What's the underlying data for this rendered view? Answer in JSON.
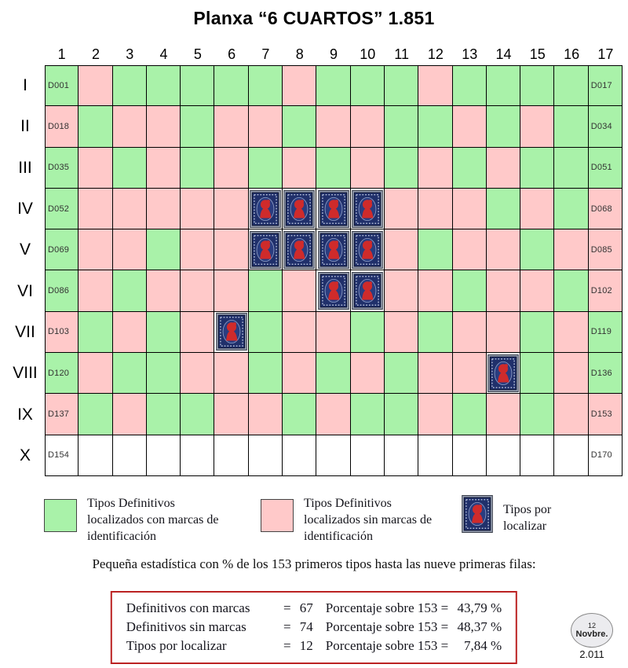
{
  "title": "Planxa “6 CUARTOS” 1.851",
  "colors": {
    "green": "#a9f2a9",
    "pink": "#ffc9c9",
    "stamp_blue": "#20306b",
    "stamp_red": "#cf2b2b",
    "box_border": "#bb2222"
  },
  "chart_data": {
    "type": "heatmap",
    "title": "Planxa “6 CUARTOS” 1.851",
    "columns": [
      "1",
      "2",
      "3",
      "4",
      "5",
      "6",
      "7",
      "8",
      "9",
      "10",
      "11",
      "12",
      "13",
      "14",
      "15",
      "16",
      "17"
    ],
    "rows": [
      "I",
      "II",
      "III",
      "IV",
      "V",
      "VI",
      "VII",
      "VIII",
      "IX",
      "X"
    ],
    "cell_codes": {
      "G": "Tipo definitivo localizado con marcas de identificación (verde)",
      "P": "Tipo definitivo localizado sin marcas de identificación (rosa)",
      "S": "Tipo por localizar (sello)",
      "W": "celda en blanco"
    },
    "row_data": [
      {
        "roman": "I",
        "first": "D001",
        "last": "D017",
        "cells": [
          "G",
          "P",
          "G",
          "G",
          "G",
          "G",
          "G",
          "P",
          "G",
          "G",
          "G",
          "P",
          "G",
          "G",
          "G",
          "G",
          "G"
        ]
      },
      {
        "roman": "II",
        "first": "D018",
        "last": "D034",
        "cells": [
          "P",
          "G",
          "P",
          "P",
          "G",
          "P",
          "P",
          "G",
          "P",
          "P",
          "G",
          "G",
          "P",
          "G",
          "P",
          "G",
          "G"
        ]
      },
      {
        "roman": "III",
        "first": "D035",
        "last": "D051",
        "cells": [
          "G",
          "P",
          "G",
          "P",
          "G",
          "P",
          "G",
          "P",
          "G",
          "P",
          "G",
          "P",
          "G",
          "P",
          "G",
          "G",
          "G"
        ]
      },
      {
        "roman": "IV",
        "first": "D052",
        "last": "D068",
        "cells": [
          "G",
          "P",
          "P",
          "P",
          "P",
          "P",
          "S",
          "S",
          "S",
          "S",
          "P",
          "P",
          "P",
          "G",
          "P",
          "G",
          "P"
        ]
      },
      {
        "roman": "V",
        "first": "D069",
        "last": "D085",
        "cells": [
          "G",
          "P",
          "P",
          "G",
          "P",
          "P",
          "S",
          "S",
          "S",
          "S",
          "P",
          "G",
          "P",
          "P",
          "G",
          "P",
          "P"
        ]
      },
      {
        "roman": "VI",
        "first": "D086",
        "last": "D102",
        "cells": [
          "G",
          "P",
          "G",
          "P",
          "P",
          "P",
          "G",
          "P",
          "S",
          "S",
          "P",
          "P",
          "G",
          "P",
          "P",
          "G",
          "P"
        ]
      },
      {
        "roman": "VII",
        "first": "D103",
        "last": "D119",
        "cells": [
          "P",
          "G",
          "P",
          "G",
          "P",
          "S",
          "G",
          "P",
          "P",
          "G",
          "P",
          "G",
          "P",
          "P",
          "G",
          "P",
          "G"
        ]
      },
      {
        "roman": "VIII",
        "first": "D120",
        "last": "D136",
        "cells": [
          "G",
          "P",
          "G",
          "G",
          "P",
          "P",
          "G",
          "P",
          "G",
          "P",
          "G",
          "P",
          "P",
          "S",
          "G",
          "P",
          "G"
        ]
      },
      {
        "roman": "IX",
        "first": "D137",
        "last": "D153",
        "cells": [
          "P",
          "G",
          "P",
          "G",
          "G",
          "P",
          "P",
          "G",
          "P",
          "G",
          "G",
          "P",
          "G",
          "P",
          "G",
          "P",
          "P"
        ]
      },
      {
        "roman": "X",
        "first": "D154",
        "last": "D170",
        "cells": [
          "W",
          "W",
          "W",
          "W",
          "W",
          "W",
          "W",
          "W",
          "W",
          "W",
          "W",
          "W",
          "W",
          "W",
          "W",
          "W",
          "W"
        ]
      }
    ],
    "counts": {
      "definitivos_con_marcas": 67,
      "definitivos_sin_marcas": 74,
      "tipos_por_localizar": 12,
      "total_considerado": 153
    }
  },
  "legend": {
    "green_label": "Tipos Definitivos localizados con marcas de identificación",
    "pink_label": "Tipos Definitivos localizados sin marcas de identificación",
    "stamp_label": "Tipos por localizar"
  },
  "stats": {
    "intro": "Pequeña estadística con % de los 153 primeros tipos hasta las nueve primeras filas:",
    "lines": [
      {
        "label": "Definitivos con marcas",
        "eq": "=",
        "value": "67",
        "mid": "Porcentaje sobre 153 =",
        "pct": "43,79 %"
      },
      {
        "label": "Definitivos sin marcas",
        "eq": "=",
        "value": "74",
        "mid": "Porcentaje sobre 153 =",
        "pct": "48,37 %"
      },
      {
        "label": "Tipos por localizar",
        "eq": "=",
        "value": "12",
        "mid": "Porcentaje sobre 153 =",
        "pct": "7,84 %"
      }
    ]
  },
  "seal": {
    "day": "12",
    "month": "Novbre.",
    "year": "2.011"
  }
}
